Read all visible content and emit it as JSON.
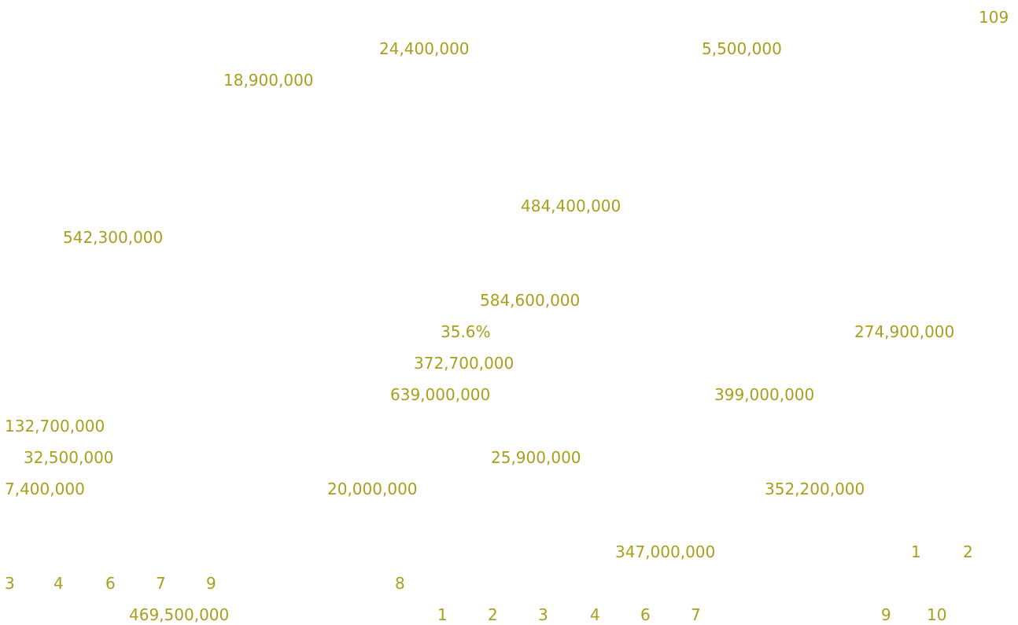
{
  "text_color": "#a8a01c",
  "labels": [
    "109",
    "24,400,000",
    "5,500,000",
    "18,900,000",
    "484,400,000",
    "542,300,000",
    "584,600,000",
    "35.6%",
    "274,900,000",
    "372,700,000",
    "639,000,000",
    "399,000,000",
    "132,700,000",
    "32,500,000",
    "25,900,000",
    "7,400,000",
    "20,000,000",
    "352,200,000",
    "347,000,000",
    "1",
    "2",
    "3",
    "4",
    "6",
    "7",
    "9",
    "8",
    "469,500,000",
    "1",
    "2",
    "3",
    "4",
    "6",
    "7",
    "9",
    "10"
  ]
}
